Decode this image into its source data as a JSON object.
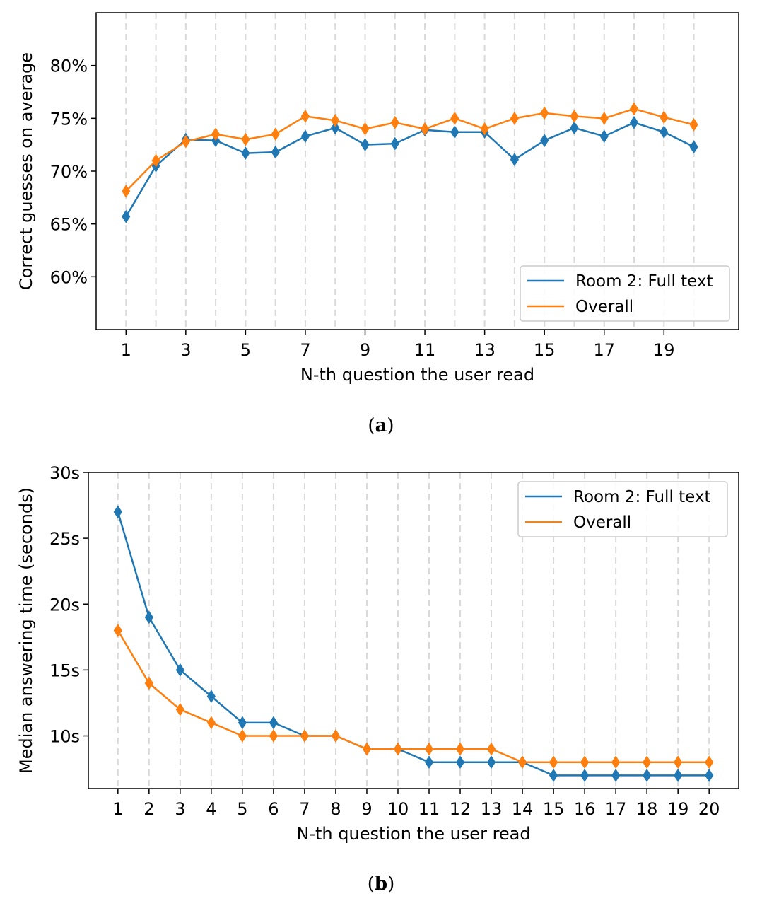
{
  "chart_data": [
    {
      "type": "line",
      "caption_letter": "a",
      "x": [
        1,
        2,
        3,
        4,
        5,
        6,
        7,
        8,
        9,
        10,
        11,
        12,
        13,
        14,
        15,
        16,
        17,
        18,
        19,
        20
      ],
      "xticks": [
        1,
        3,
        5,
        7,
        9,
        11,
        13,
        15,
        17,
        19
      ],
      "xlabel": "N-th question the user read",
      "ylabel": "Correct guesses on average",
      "ylim": [
        55,
        85
      ],
      "yticks": [
        60,
        65,
        70,
        75,
        80
      ],
      "ytick_labels": [
        "60%",
        "65%",
        "70%",
        "75%",
        "80%"
      ],
      "grid": "vertical dashed",
      "legend_position": "lower-right",
      "series": [
        {
          "name": "Room 2: Full text",
          "color": "#1f77b4",
          "values": [
            65.7,
            70.5,
            73.0,
            72.9,
            71.7,
            71.8,
            73.3,
            74.1,
            72.5,
            72.6,
            73.9,
            73.7,
            73.7,
            71.1,
            72.9,
            74.1,
            73.3,
            74.6,
            73.7,
            72.3
          ]
        },
        {
          "name": "Overall",
          "color": "#ff7f0e",
          "values": [
            68.1,
            71.0,
            72.8,
            73.5,
            73.0,
            73.5,
            75.2,
            74.8,
            74.0,
            74.6,
            74.0,
            75.0,
            74.0,
            75.0,
            75.5,
            75.2,
            75.0,
            75.9,
            75.1,
            74.4
          ]
        }
      ]
    },
    {
      "type": "line",
      "caption_letter": "b",
      "x": [
        1,
        2,
        3,
        4,
        5,
        6,
        7,
        8,
        9,
        10,
        11,
        12,
        13,
        14,
        15,
        16,
        17,
        18,
        19,
        20
      ],
      "xticks": [
        1,
        2,
        3,
        4,
        5,
        6,
        7,
        8,
        9,
        10,
        11,
        12,
        13,
        14,
        15,
        16,
        17,
        18,
        19,
        20
      ],
      "xlabel": "N-th question the user read",
      "ylabel": "Median answering time (seconds)",
      "ylim": [
        6.0,
        30.0
      ],
      "yticks": [
        10,
        15,
        20,
        25,
        30
      ],
      "ytick_labels": [
        "10s",
        "15s",
        "20s",
        "25s",
        "30s"
      ],
      "grid": "vertical dashed",
      "legend_position": "upper-right",
      "series": [
        {
          "name": "Room 2: Full text",
          "color": "#1f77b4",
          "values": [
            27,
            19,
            15,
            13,
            11,
            11,
            10,
            10,
            9,
            9,
            8,
            8,
            8,
            8,
            7,
            7,
            7,
            7,
            7,
            7
          ]
        },
        {
          "name": "Overall",
          "color": "#ff7f0e",
          "values": [
            18,
            14,
            12,
            11,
            10,
            10,
            10,
            10,
            9,
            9,
            9,
            9,
            9,
            8,
            8,
            8,
            8,
            8,
            8,
            8
          ]
        }
      ]
    }
  ]
}
